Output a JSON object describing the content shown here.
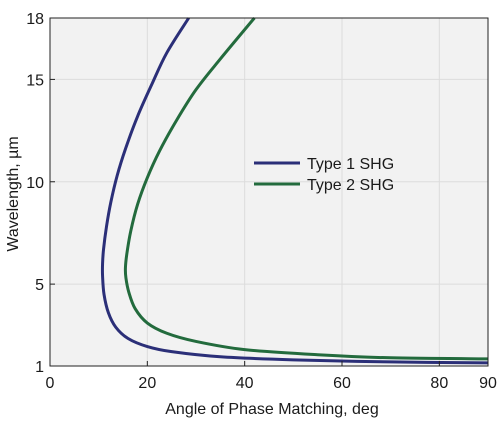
{
  "chart_data": {
    "type": "line",
    "xlabel": "Angle of Phase Matching, deg",
    "ylabel": "Wavelength, µm",
    "xlim": [
      0,
      90
    ],
    "ylim": [
      1,
      18
    ],
    "x_ticks": [
      0,
      20,
      40,
      60,
      80,
      90
    ],
    "y_ticks": [
      1,
      5,
      10,
      15,
      18
    ],
    "grid": true,
    "plot_background": "#f2f2f2",
    "grid_color": "#dcdcdc",
    "legend_position": "center-right",
    "series": [
      {
        "name": "Type 1 SHG",
        "color": "#2b2f78",
        "points": [
          [
            90,
            1.15
          ],
          [
            70,
            1.2
          ],
          [
            50,
            1.3
          ],
          [
            35,
            1.45
          ],
          [
            25,
            1.7
          ],
          [
            20,
            1.95
          ],
          [
            16,
            2.35
          ],
          [
            13.5,
            2.9
          ],
          [
            12,
            3.6
          ],
          [
            11.1,
            4.5
          ],
          [
            10.8,
            5.4
          ],
          [
            10.8,
            6.0
          ],
          [
            11,
            6.7
          ],
          [
            11.6,
            7.8
          ],
          [
            12.5,
            9.0
          ],
          [
            13.8,
            10.3
          ],
          [
            15.5,
            11.6
          ],
          [
            18,
            13.2
          ],
          [
            21,
            14.8
          ],
          [
            24,
            16.3
          ],
          [
            28.5,
            18
          ]
        ]
      },
      {
        "name": "Type 2 SHG",
        "color": "#236b3d",
        "points": [
          [
            90,
            1.35
          ],
          [
            70,
            1.4
          ],
          [
            55,
            1.55
          ],
          [
            40,
            1.8
          ],
          [
            30,
            2.2
          ],
          [
            24,
            2.6
          ],
          [
            20,
            3.1
          ],
          [
            17.5,
            3.8
          ],
          [
            16.2,
            4.6
          ],
          [
            15.6,
            5.3
          ],
          [
            15.5,
            5.8
          ],
          [
            15.8,
            6.5
          ],
          [
            16.6,
            7.6
          ],
          [
            18,
            8.9
          ],
          [
            20,
            10.2
          ],
          [
            22.5,
            11.5
          ],
          [
            26,
            13.0
          ],
          [
            30,
            14.5
          ],
          [
            35,
            16.0
          ],
          [
            42,
            18
          ]
        ]
      }
    ]
  }
}
